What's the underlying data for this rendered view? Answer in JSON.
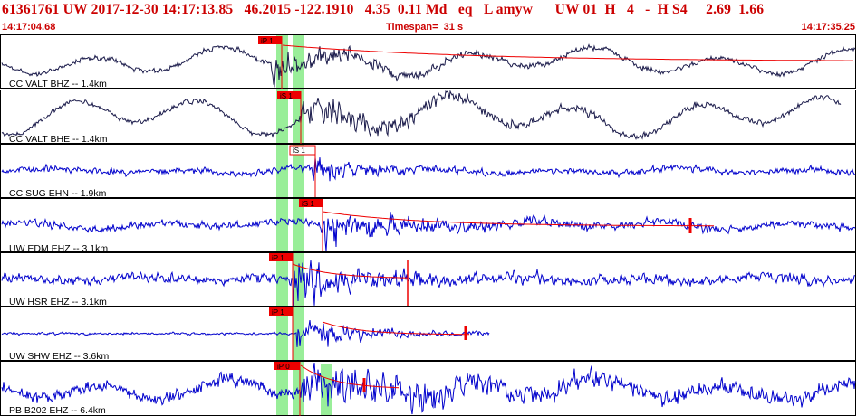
{
  "header": {
    "title": "61361761 UW 2017-12-30 14:17:13.85   46.2015 -122.1910   4.35  0.11 Md   eq   L amyw      UW 01  H   4   -  H S4     2.69  1.66",
    "start_time": "14:17:04.68",
    "timespan": "Timespan=  31 s",
    "end_time": "14:17:35.25"
  },
  "colors": {
    "trace_dark": "#1a1a4a",
    "trace_blue": "#0000cc",
    "pick_red": "#ee0000",
    "highlight_green": "#99ee99",
    "header_text": "#cc0000"
  },
  "channels": [
    {
      "label": "CC VALT BHZ -- 1.4km",
      "pick": "iP 1",
      "color": "dark"
    },
    {
      "label": "CC VALT BHE -- 1.4km",
      "pick": "iS 1",
      "color": "dark"
    },
    {
      "label": "CC SUG EHN -- 1.9km",
      "pick": "iS 1",
      "color": "blue"
    },
    {
      "label": "UW EDM EHZ -- 3.1km",
      "pick": "iS 1",
      "color": "blue"
    },
    {
      "label": "UW HSR EHZ -- 3.1km",
      "pick": "iP 1",
      "color": "blue"
    },
    {
      "label": "UW SHW EHZ -- 3.6km",
      "pick": "iP 1",
      "color": "blue"
    },
    {
      "label": "PB B202 EHZ -- 6.4km",
      "pick": "iP 0",
      "color": "blue"
    }
  ]
}
